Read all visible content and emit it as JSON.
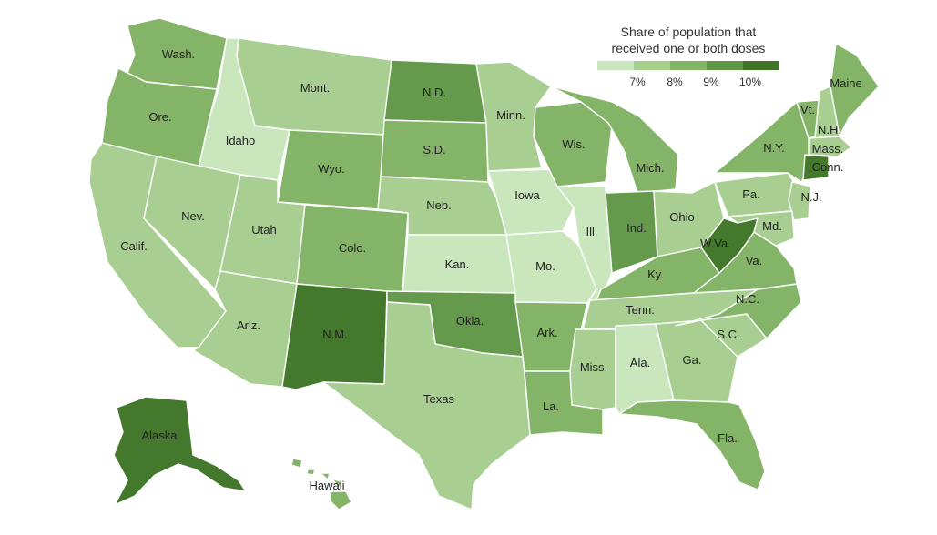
{
  "legend": {
    "title_line1": "Share of population that",
    "title_line2": "received one or both doses",
    "ticks": [
      "7%",
      "8%",
      "9%",
      "10%"
    ],
    "colors": [
      "#c9e6bd",
      "#a6d08f",
      "#83b567",
      "#5f9747",
      "#3f7428"
    ]
  },
  "classes": {
    "c1": "#c9e6bd",
    "c2": "#a8ce91",
    "c3": "#84b468",
    "c4": "#659a4c",
    "c5": "#44782c"
  },
  "states": [
    {
      "id": "WA",
      "label": "Wash.",
      "cls": "c3"
    },
    {
      "id": "OR",
      "label": "Ore.",
      "cls": "c3"
    },
    {
      "id": "CA",
      "label": "Calif.",
      "cls": "c2"
    },
    {
      "id": "ID",
      "label": "Idaho",
      "cls": "c1"
    },
    {
      "id": "NV",
      "label": "Nev.",
      "cls": "c2"
    },
    {
      "id": "MT",
      "label": "Mont.",
      "cls": "c2"
    },
    {
      "id": "WY",
      "label": "Wyo.",
      "cls": "c3"
    },
    {
      "id": "UT",
      "label": "Utah",
      "cls": "c2"
    },
    {
      "id": "AZ",
      "label": "Ariz.",
      "cls": "c2"
    },
    {
      "id": "CO",
      "label": "Colo.",
      "cls": "c3"
    },
    {
      "id": "NM",
      "label": "N.M.",
      "cls": "c5"
    },
    {
      "id": "ND",
      "label": "N.D.",
      "cls": "c4"
    },
    {
      "id": "SD",
      "label": "S.D.",
      "cls": "c3"
    },
    {
      "id": "NE",
      "label": "Neb.",
      "cls": "c2"
    },
    {
      "id": "KS",
      "label": "Kan.",
      "cls": "c1"
    },
    {
      "id": "OK",
      "label": "Okla.",
      "cls": "c4"
    },
    {
      "id": "TX",
      "label": "Texas",
      "cls": "c2"
    },
    {
      "id": "MN",
      "label": "Minn.",
      "cls": "c2"
    },
    {
      "id": "IA",
      "label": "Iowa",
      "cls": "c1"
    },
    {
      "id": "MO",
      "label": "Mo.",
      "cls": "c1"
    },
    {
      "id": "AR",
      "label": "Ark.",
      "cls": "c3"
    },
    {
      "id": "LA",
      "label": "La.",
      "cls": "c3"
    },
    {
      "id": "WI",
      "label": "Wis.",
      "cls": "c3"
    },
    {
      "id": "IL",
      "label": "Ill.",
      "cls": "c1"
    },
    {
      "id": "MI",
      "label": "Mich.",
      "cls": "c3"
    },
    {
      "id": "IN",
      "label": "Ind.",
      "cls": "c4"
    },
    {
      "id": "OH",
      "label": "Ohio",
      "cls": "c2"
    },
    {
      "id": "KY",
      "label": "Ky.",
      "cls": "c3"
    },
    {
      "id": "TN",
      "label": "Tenn.",
      "cls": "c2"
    },
    {
      "id": "MS",
      "label": "Miss.",
      "cls": "c2"
    },
    {
      "id": "AL",
      "label": "Ala.",
      "cls": "c1"
    },
    {
      "id": "GA",
      "label": "Ga.",
      "cls": "c2"
    },
    {
      "id": "FL",
      "label": "Fla.",
      "cls": "c3"
    },
    {
      "id": "SC",
      "label": "S.C.",
      "cls": "c2"
    },
    {
      "id": "NC",
      "label": "N.C.",
      "cls": "c3"
    },
    {
      "id": "VA",
      "label": "Va.",
      "cls": "c3"
    },
    {
      "id": "WV",
      "label": "W.Va.",
      "cls": "c5"
    },
    {
      "id": "PA",
      "label": "Pa.",
      "cls": "c2"
    },
    {
      "id": "NY",
      "label": "N.Y.",
      "cls": "c3"
    },
    {
      "id": "VT",
      "label": "Vt.",
      "cls": "c3"
    },
    {
      "id": "NH",
      "label": "N.H.",
      "cls": "c2"
    },
    {
      "id": "ME",
      "label": "Maine",
      "cls": "c3"
    },
    {
      "id": "MA",
      "label": "Mass.",
      "cls": "c2"
    },
    {
      "id": "CT",
      "label": "Conn.",
      "cls": "c5"
    },
    {
      "id": "NJ",
      "label": "N.J.",
      "cls": "c2"
    },
    {
      "id": "MD",
      "label": "Md.",
      "cls": "c2"
    },
    {
      "id": "AK",
      "label": "Alaska",
      "cls": "c5"
    },
    {
      "id": "HI",
      "label": "Hawaii",
      "cls": "c3"
    }
  ]
}
